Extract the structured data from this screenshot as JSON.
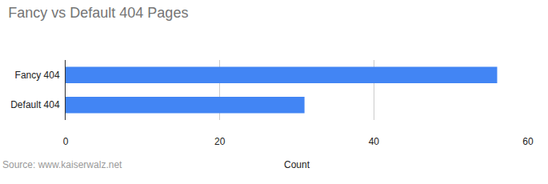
{
  "chart_data": {
    "type": "bar",
    "orientation": "horizontal",
    "title": "Fancy vs Default 404 Pages",
    "x_label": "Count",
    "annotations": [
      "Source: www.kaiserwalz.net"
    ],
    "categories": [
      "Fancy 404",
      "Default 404"
    ],
    "values": [
      56,
      31
    ],
    "color": "#4285f4",
    "xlim": [
      0,
      60
    ],
    "xticks": [
      0,
      20,
      40,
      60
    ],
    "grid": true
  }
}
